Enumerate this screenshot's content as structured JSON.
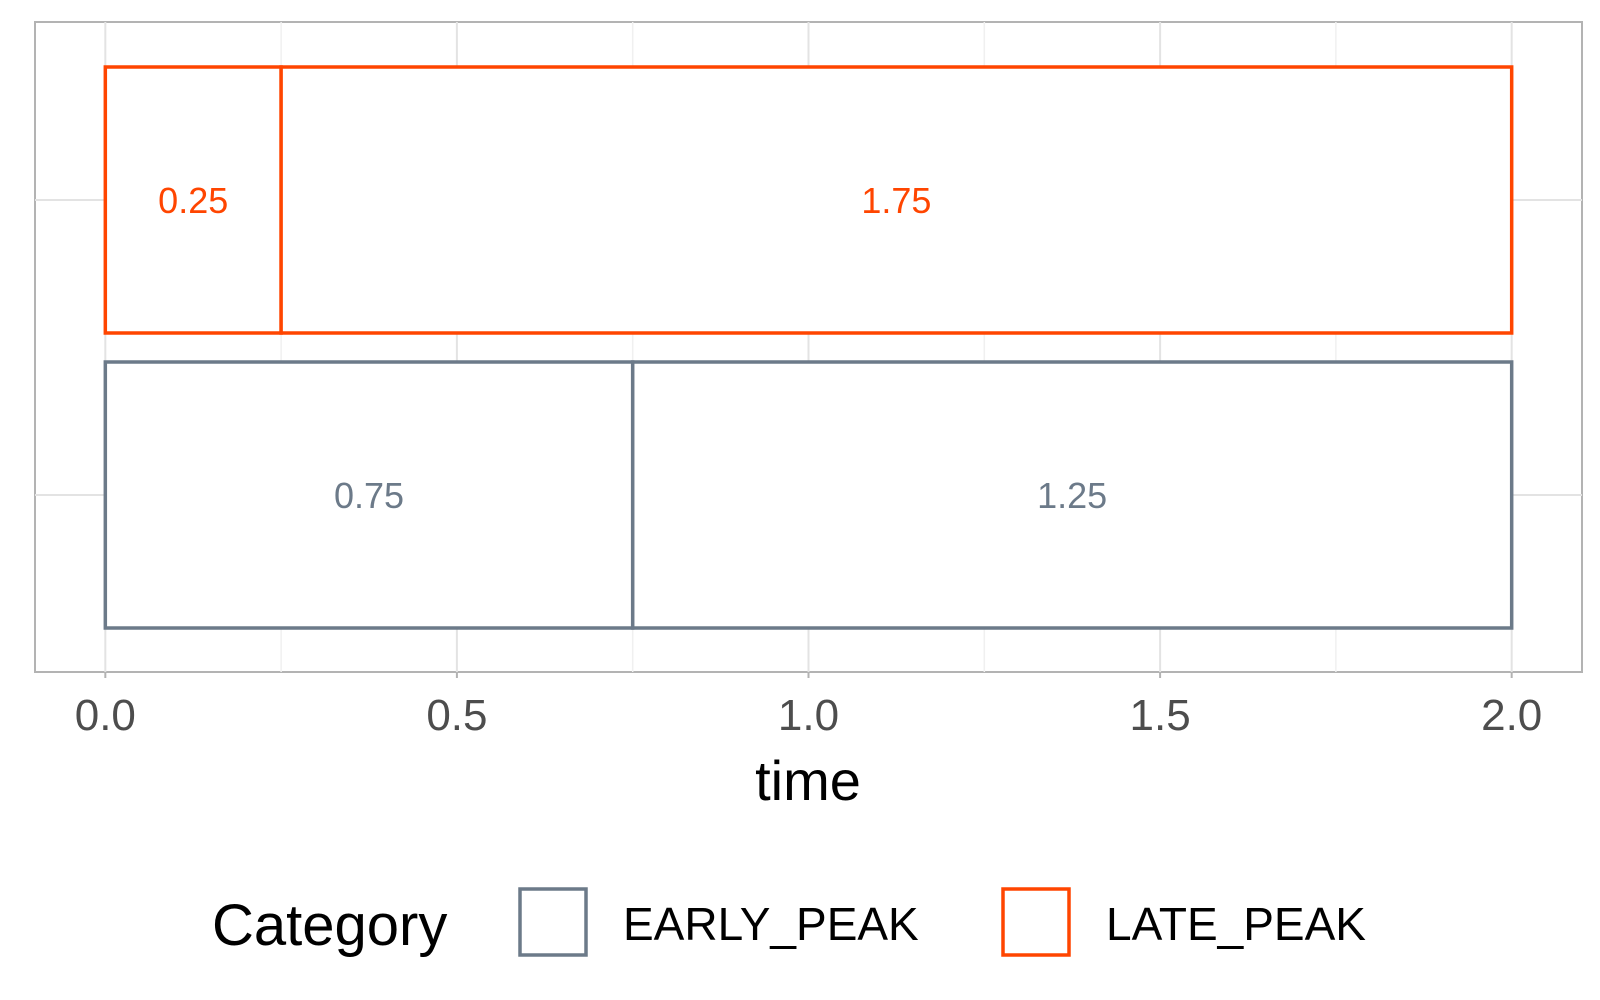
{
  "chart_data": {
    "type": "bar",
    "orientation": "horizontal",
    "stacked": true,
    "xlabel": "time",
    "ylabel": "",
    "xlim": [
      -0.1,
      2.1
    ],
    "x_ticks": [
      0.0,
      0.5,
      1.0,
      1.5,
      2.0
    ],
    "x_tick_labels": [
      "0.0",
      "0.5",
      "1.0",
      "1.5",
      "2.0"
    ],
    "grid": true,
    "legend": {
      "title": "Category",
      "placement": "bottom",
      "entries": [
        "EARLY_PEAK",
        "LATE_PEAK"
      ]
    },
    "categories": [
      "LATE_PEAK",
      "EARLY_PEAK"
    ],
    "series": [
      {
        "category": "LATE_PEAK",
        "color": "#ff4500",
        "segments": [
          {
            "start": 0.0,
            "end": 0.25,
            "value": 0.25,
            "label": "0.25"
          },
          {
            "start": 0.25,
            "end": 2.0,
            "value": 1.75,
            "label": "1.75"
          }
        ]
      },
      {
        "category": "EARLY_PEAK",
        "color": "#6c7a89",
        "segments": [
          {
            "start": 0.0,
            "end": 0.75,
            "value": 0.75,
            "label": "0.75"
          },
          {
            "start": 0.75,
            "end": 2.0,
            "value": 1.25,
            "label": "1.25"
          }
        ]
      }
    ]
  }
}
